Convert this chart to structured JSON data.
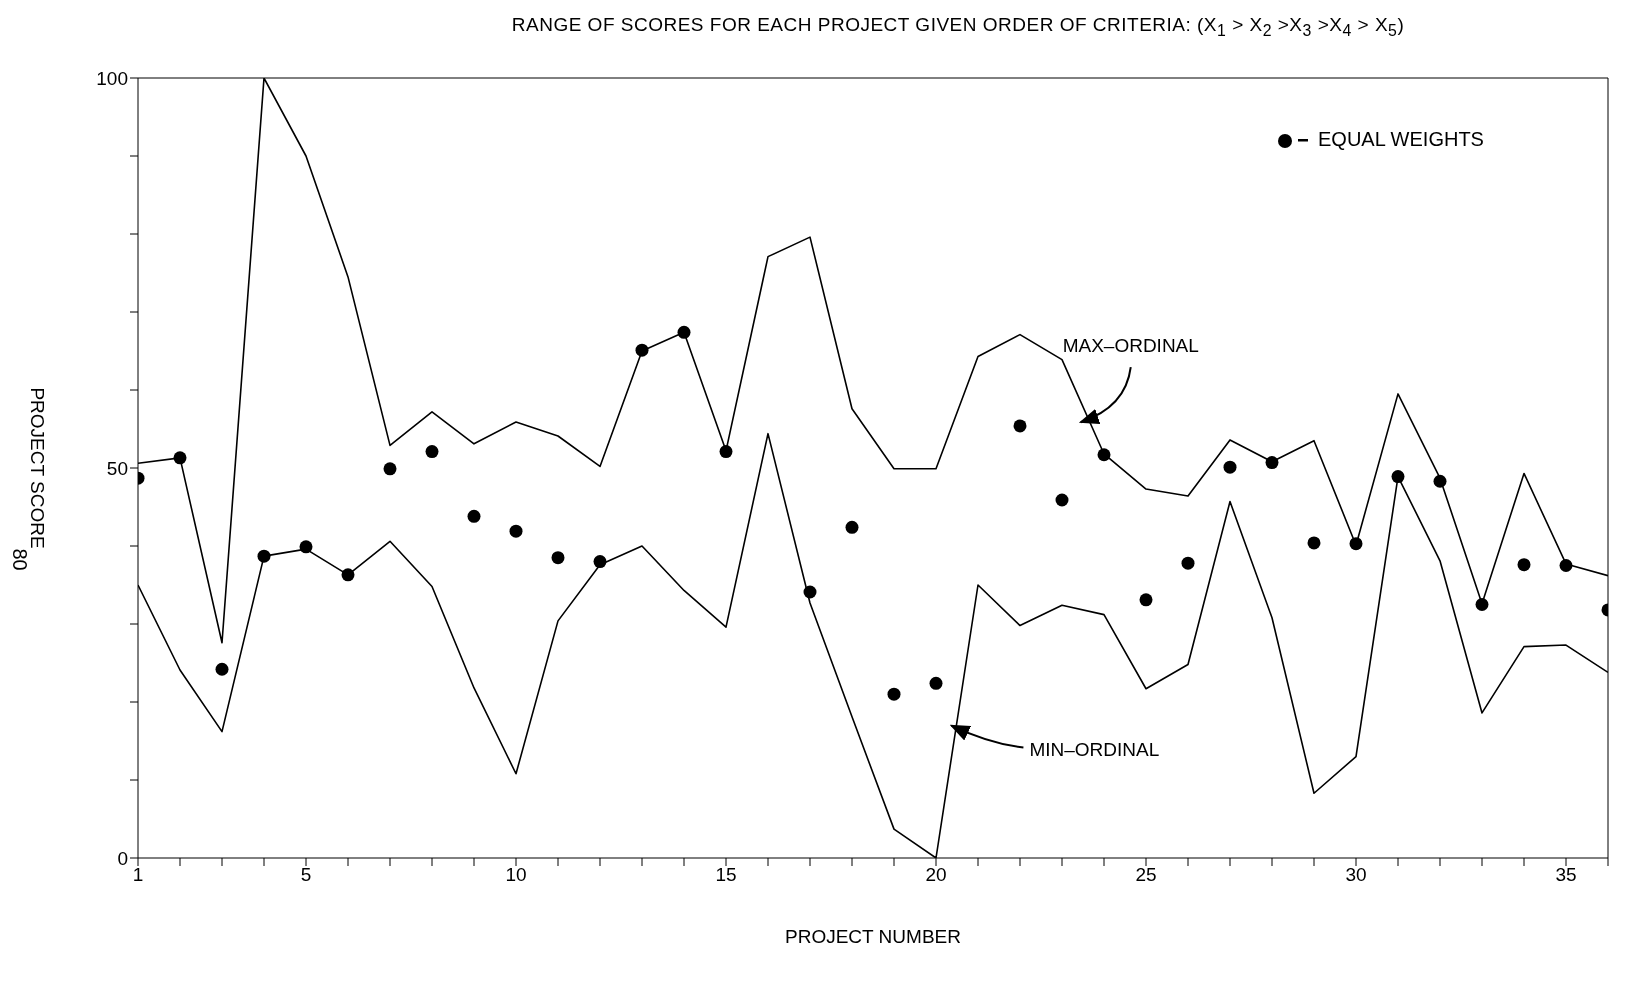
{
  "chart_data": {
    "type": "line",
    "title": "RANGE OF SCORES FOR EACH PROJECT GIVEN ORDER OF CRITERIA:   (X$_{1}$ > X$_{2}$ >X$_{3}$ >X$_{4}$ > X$_{5}$)",
    "xlabel": "PROJECT NUMBER",
    "ylabel": "PROJECT SCORE",
    "x": [
      1,
      2,
      3,
      4,
      5,
      6,
      7,
      8,
      9,
      10,
      11,
      12,
      13,
      14,
      15,
      16,
      17,
      18,
      19,
      20,
      21,
      22,
      23,
      24,
      25,
      26,
      27,
      28,
      29,
      30,
      31,
      32,
      33,
      34,
      35,
      36
    ],
    "series": [
      {
        "color": "#000000",
        "values": [
          50.6,
          51.3,
          27.6,
          100,
          90,
          74.5,
          52.9,
          57.2,
          53.1,
          55.9,
          54.1,
          50.2,
          65,
          67.4,
          52.2,
          77.1,
          79.6,
          57.6,
          49.9,
          49.9,
          64.3,
          67.1,
          63.9,
          51.8,
          47.3,
          46.4,
          53.6,
          50.8,
          53.5,
          40.1,
          59.5,
          48.7,
          32.6,
          49.3,
          37.7,
          36.2
        ]
      },
      {
        "color": "#000000",
        "values": [
          35,
          24.1,
          16.2,
          38.7,
          39.6,
          36.3,
          40.6,
          34.8,
          21.8,
          10.8,
          30.4,
          37.6,
          40,
          34.3,
          29.6,
          54.4,
          32.7,
          18.1,
          3.7,
          0,
          35,
          29.8,
          32.4,
          31.2,
          21.7,
          24.8,
          45.7,
          30.8,
          8.3,
          13,
          48.9,
          38.1,
          18.6,
          27.1,
          27.3,
          23.8
        ]
      },
      {
        "type": "scatter",
        "name": "EQUAL WEIGHTS",
        "color": "#000000",
        "marker": "circle",
        "values": [
          48.7,
          51.3,
          24.2,
          38.7,
          39.9,
          36.3,
          49.9,
          52.1,
          43.8,
          41.9,
          38.5,
          38,
          65.1,
          67.4,
          52.1,
          null,
          34.1,
          42.4,
          21,
          22.4,
          null,
          55.4,
          45.9,
          51.7,
          33.1,
          37.8,
          50.1,
          50.7,
          40.4,
          40.3,
          48.9,
          48.3,
          32.5,
          37.6,
          37.5,
          31.8
        ]
      }
    ],
    "line_style": "solid",
    "legend": "top right",
    "xlim": [
      1,
      36
    ],
    "xticks": [
      1,
      {
        "value": 2,
        "label": null
      },
      {
        "value": 3,
        "label": null
      },
      {
        "value": 4,
        "label": null
      },
      5,
      {
        "value": 6,
        "label": null
      },
      {
        "value": 7,
        "label": null
      },
      {
        "value": 8,
        "label": null
      },
      {
        "value": 9,
        "label": null
      },
      10,
      {
        "value": 11,
        "label": null
      },
      {
        "value": 12,
        "label": null
      },
      {
        "value": 13,
        "label": null
      },
      {
        "value": 14,
        "label": null
      },
      15,
      {
        "value": 16,
        "label": null
      },
      {
        "value": 17,
        "label": null
      },
      {
        "value": 18,
        "label": null
      },
      {
        "value": 19,
        "label": null
      },
      20,
      {
        "value": 21,
        "label": null
      },
      {
        "value": 22,
        "label": null
      },
      {
        "value": 23,
        "label": null
      },
      {
        "value": 24,
        "label": null
      },
      25,
      {
        "value": 26,
        "label": null
      },
      {
        "value": 27,
        "label": null
      },
      {
        "value": 28,
        "label": null
      },
      {
        "value": 29,
        "label": null
      },
      30,
      {
        "value": 31,
        "label": null
      },
      {
        "value": 32,
        "label": null
      },
      {
        "value": 33,
        "label": null
      },
      {
        "value": 34,
        "label": null
      },
      35,
      {
        "value": 36,
        "label": null
      }
    ],
    "ylim": [
      0,
      100
    ],
    "yticks": [
      0,
      {
        "value": 10,
        "label": null
      },
      {
        "value": 20,
        "label": null
      },
      {
        "value": 30,
        "label": null
      },
      {
        "value": 40,
        "label": null
      },
      50,
      {
        "value": 60,
        "label": null
      },
      {
        "value": 70,
        "label": null
      },
      {
        "value": 80,
        "label": null
      },
      {
        "value": 90,
        "label": null
      },
      100
    ],
    "annotations": [
      {
        "text": "MAX–ORDINAL",
        "x": 23.6,
        "y": 56.6
      },
      {
        "text": "MIN–ORDINAL",
        "x": 20.5,
        "y": 17.2
      },
      "80"
    ]
  }
}
